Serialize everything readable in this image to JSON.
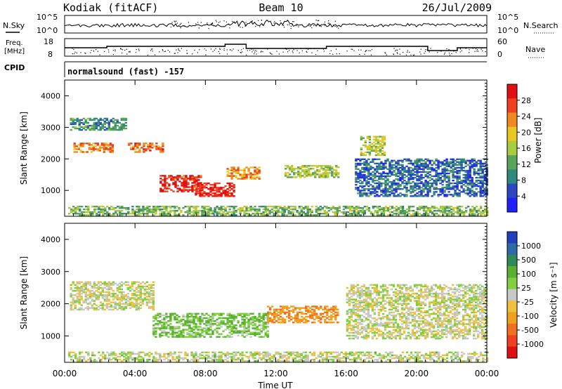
{
  "header": {
    "station": "Kodiak (fitACF)",
    "beam": "Beam 10",
    "date": "26/Jul/2009"
  },
  "top_panels": {
    "nsky": {
      "label": "N.Sky",
      "ticks": [
        "10^5",
        "10^0"
      ]
    },
    "nsearch": {
      "label": "N.Search",
      "ticks": [
        "10^5",
        "10^0"
      ]
    },
    "freq": {
      "label_line1": "Freq.",
      "label_line2": "[MHz]",
      "ticks": [
        "18",
        "8"
      ]
    },
    "nave": {
      "label": "Nave",
      "ticks": [
        "60",
        "0"
      ]
    },
    "cpid": {
      "label": "CPID",
      "program": "normalsound (fast) -157"
    }
  },
  "chart_data": [
    {
      "type": "heatmap",
      "ylabel": "Slant Range [km]",
      "xlabel": "",
      "xlim": [
        0,
        24
      ],
      "ylim": [
        180,
        4500
      ],
      "x_tick_labels": [
        "00:00",
        "04:00",
        "08:00",
        "12:00",
        "16:00",
        "20:00",
        "00:00"
      ],
      "y_ticks": [
        1000,
        2000,
        3000,
        4000
      ],
      "colorbar": {
        "label": "Power [dB]",
        "ticks": [
          "28",
          "24",
          "20",
          "16",
          "12",
          "8",
          "4"
        ],
        "colors": [
          "#2020ff",
          "#2a46c0",
          "#2f8a7e",
          "#5aa45a",
          "#a8cc40",
          "#e8c820",
          "#f08a20",
          "#f04020",
          "#e01010"
        ]
      },
      "regions": [
        {
          "t": [
            0.2,
            24
          ],
          "r": [
            200,
            480
          ],
          "v": 13
        },
        {
          "t": [
            0.5,
            2.7
          ],
          "r": [
            2200,
            2500
          ],
          "v": 22
        },
        {
          "t": [
            3.6,
            5.6
          ],
          "r": [
            2200,
            2500
          ],
          "v": 23
        },
        {
          "t": [
            5.4,
            7.8
          ],
          "r": [
            950,
            1450
          ],
          "v": 27
        },
        {
          "t": [
            7.4,
            9.6
          ],
          "r": [
            800,
            1250
          ],
          "v": 28
        },
        {
          "t": [
            9.2,
            11.0
          ],
          "r": [
            1350,
            1750
          ],
          "v": 21
        },
        {
          "t": [
            12.5,
            15.5
          ],
          "r": [
            1400,
            1800
          ],
          "v": 15
        },
        {
          "t": [
            16.8,
            18.2
          ],
          "r": [
            2100,
            2700
          ],
          "v": 16
        },
        {
          "t": [
            16.5,
            24
          ],
          "r": [
            800,
            2000
          ],
          "v": 7
        },
        {
          "t": [
            0.3,
            3.5
          ],
          "r": [
            2900,
            3300
          ],
          "v": 10
        }
      ]
    },
    {
      "type": "heatmap",
      "ylabel": "Slant Range [km]",
      "xlabel": "Time UT",
      "xlim": [
        0,
        24
      ],
      "ylim": [
        180,
        4500
      ],
      "x_tick_labels": [
        "00:00",
        "04:00",
        "08:00",
        "12:00",
        "16:00",
        "20:00",
        "00:00"
      ],
      "y_ticks": [
        1000,
        2000,
        3000,
        4000
      ],
      "colorbar": {
        "label": "Velocity [m s⁻¹]",
        "ticks": [
          "1000",
          "500",
          "100",
          "25",
          "-25",
          "-100",
          "-500",
          "-1000"
        ],
        "colors": [
          "#2040c0",
          "#2f6aa8",
          "#2f8a5a",
          "#5ab030",
          "#80d040",
          "#c8c8c8",
          "#f0c040",
          "#f0a020",
          "#f07020",
          "#f04020",
          "#e01010"
        ]
      },
      "regions": [
        {
          "t": [
            0.2,
            24
          ],
          "r": [
            200,
            480
          ],
          "v": 10
        },
        {
          "t": [
            5.0,
            11.5
          ],
          "r": [
            950,
            1700
          ],
          "v": 70
        },
        {
          "t": [
            11.5,
            15.5
          ],
          "r": [
            1400,
            1900
          ],
          "v": -150
        },
        {
          "t": [
            16.0,
            24
          ],
          "r": [
            900,
            2600
          ],
          "v": 0
        },
        {
          "t": [
            0.3,
            5.0
          ],
          "r": [
            1800,
            2700
          ],
          "v": 0
        }
      ]
    }
  ]
}
